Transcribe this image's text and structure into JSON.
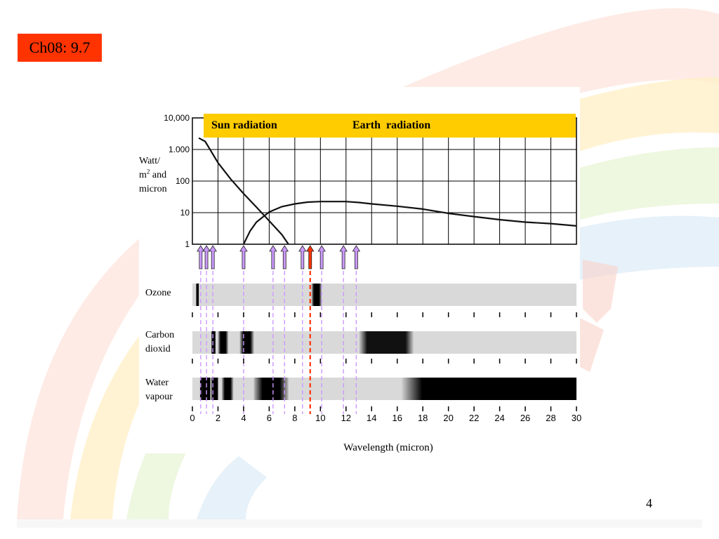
{
  "slide": {
    "chapter_tag": "Ch08: 9.7",
    "page_number": "4"
  },
  "banner": {
    "sun_label": "Sun radiation",
    "earth_label": "Earth  radiation",
    "color": "#ffcc00"
  },
  "colors": {
    "chapter_tag_bg": "#ff3300",
    "arrow_fill": "#cc99ff",
    "highlight_arrow": "#ff3300",
    "dashed_line": "#cc99ff",
    "band_bg": "#d9d9d9"
  },
  "chart_data": [
    {
      "type": "line",
      "title": "",
      "ylabel": [
        "Watt/",
        "m",
        "2",
        " and",
        "micron"
      ],
      "yscale": "log",
      "ytick_labels": [
        "10,000",
        "1.000",
        "100",
        "10",
        "1"
      ],
      "ytick_values": [
        10000,
        1000,
        100,
        10,
        1
      ],
      "ylim": [
        1,
        10000
      ],
      "xlim": [
        0,
        30
      ],
      "grid": true,
      "series": [
        {
          "name": "Sun radiation",
          "x": [
            0.5,
            1,
            2,
            3,
            4,
            5,
            6,
            7,
            7.5
          ],
          "y": [
            2300,
            1800,
            380,
            115,
            40,
            15,
            5.5,
            2,
            1
          ]
        },
        {
          "name": "Earth radiation",
          "x": [
            4,
            4.5,
            5,
            6,
            7,
            8,
            9,
            10,
            11,
            12,
            13,
            14,
            16,
            18,
            20,
            22,
            24,
            26,
            28,
            30
          ],
          "y": [
            1,
            2.6,
            5,
            10.5,
            15.5,
            19,
            21.5,
            22.5,
            22.5,
            22.5,
            21,
            19,
            16,
            13,
            9.5,
            7.5,
            6,
            5,
            4.5,
            3.8
          ]
        }
      ]
    },
    {
      "type": "heatmap",
      "xlabel": "Wavelength (micron)",
      "xlim": [
        0,
        30
      ],
      "x_ticks": [
        "0",
        "2",
        "4",
        "6",
        "8",
        "10",
        "12",
        "14",
        "16",
        "18",
        "20",
        "22",
        "24",
        "26",
        "28",
        "30"
      ],
      "x_tick_values": [
        0,
        2,
        4,
        6,
        8,
        10,
        12,
        14,
        16,
        18,
        20,
        22,
        24,
        26,
        28,
        30
      ],
      "rows": [
        {
          "label": "Ozone",
          "absorption_bands": [
            {
              "from": 0.3,
              "to": 0.5
            },
            {
              "from": 9.3,
              "to": 10.1
            }
          ]
        },
        {
          "label": "Carbon dioxid",
          "absorption_bands": [
            {
              "from": 1.5,
              "to": 1.8
            },
            {
              "from": 2.0,
              "to": 2.8
            },
            {
              "from": 3.7,
              "to": 4.8
            },
            {
              "from": 13.0,
              "to": 17.3
            }
          ]
        },
        {
          "label": "Water vapour",
          "absorption_bands": [
            {
              "from": 0.6,
              "to": 0.8
            },
            {
              "from": 0.8,
              "to": 1.1
            },
            {
              "from": 1.1,
              "to": 1.4
            },
            {
              "from": 1.5,
              "to": 2.0
            },
            {
              "from": 2.3,
              "to": 3.2
            },
            {
              "from": 4.8,
              "to": 7.5
            },
            {
              "from": 16.3,
              "to": 30
            }
          ]
        }
      ],
      "arrows": [
        {
          "x": 0.65,
          "highlight": false
        },
        {
          "x": 1.1,
          "highlight": false
        },
        {
          "x": 1.6,
          "highlight": false
        },
        {
          "x": 4.0,
          "highlight": false
        },
        {
          "x": 6.3,
          "highlight": false
        },
        {
          "x": 7.2,
          "highlight": false
        },
        {
          "x": 8.6,
          "highlight": false
        },
        {
          "x": 9.2,
          "highlight": true
        },
        {
          "x": 10.1,
          "highlight": false
        },
        {
          "x": 11.8,
          "highlight": false
        },
        {
          "x": 12.8,
          "highlight": false
        }
      ]
    }
  ]
}
